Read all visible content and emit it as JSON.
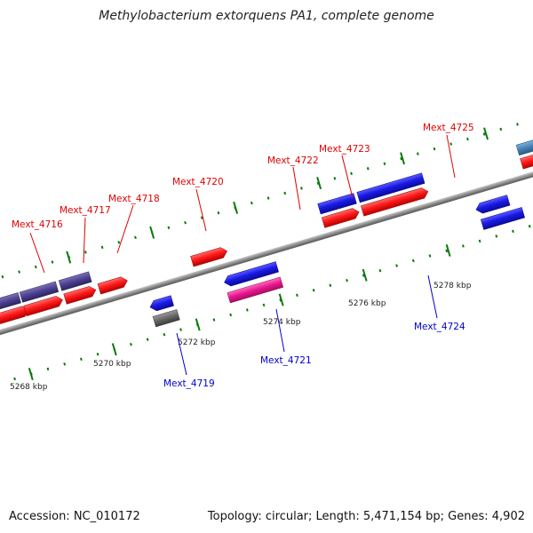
{
  "title": "Methylobacterium extorquens PA1, complete genome",
  "footer": {
    "accession": "Accession: NC_010172",
    "topology": "Topology: circular; Length: 5,471,154 bp; Genes: 4,902"
  },
  "scale_labels": [
    "5268 kbp",
    "5270 kbp",
    "5272 kbp",
    "5274 kbp",
    "5276 kbp",
    "5278 kbp"
  ],
  "gene_labels": {
    "forward": [
      "Mext_4716",
      "Mext_4717",
      "Mext_4718",
      "Mext_4720",
      "Mext_4722",
      "Mext_4723",
      "Mext_4725"
    ],
    "reverse": [
      "Mext_4719",
      "Mext_4721",
      "Mext_4724"
    ]
  },
  "colors": {
    "backbone": "#888888",
    "forward_cds": "#ff1a1a",
    "reverse_cds": "#1a1ae6",
    "gene_purple": "#4b3f8f",
    "gene_magenta": "#e6168c",
    "gene_gray": "#666666",
    "gene_steelblue": "#4682b4",
    "forward_label": "#e00000",
    "reverse_label": "#0000cc",
    "tick_green": "#0a7a0a"
  }
}
